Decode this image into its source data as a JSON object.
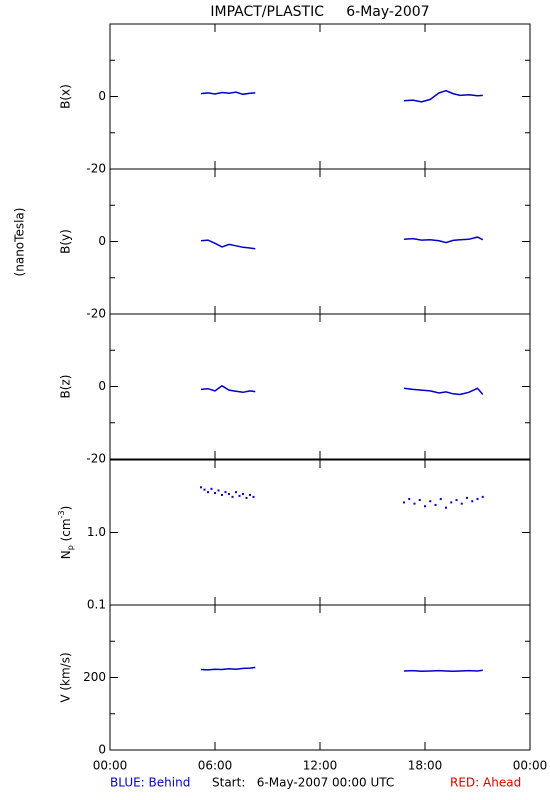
{
  "title": "IMPACT/PLASTIC     6-May-2007",
  "common_ylabel": "(nanoTesla)",
  "footer": {
    "left": "BLUE: Behind",
    "middle": "Start:   6-May-2007 00:00 UTC",
    "right": "RED: Ahead"
  },
  "chart_data": [
    {
      "type": "line",
      "ylabel": "B(x)",
      "xlim": [
        0,
        24
      ],
      "xticks": [
        0,
        6,
        12,
        18,
        24
      ],
      "ylim": [
        -20,
        20
      ],
      "yticks": [
        -20,
        0
      ],
      "yminor": [
        -10,
        10
      ],
      "series": [
        {
          "name": "Behind",
          "color": "#0000cc",
          "x": [
            5.2,
            5.6,
            6.0,
            6.4,
            6.8,
            7.2,
            7.6,
            8.0,
            8.3,
            null,
            16.8,
            17.3,
            17.8,
            18.3,
            18.8,
            19.2,
            19.6,
            20.0,
            20.5,
            21.0,
            21.3
          ],
          "values": [
            0.8,
            1.0,
            0.7,
            1.1,
            0.9,
            1.2,
            0.6,
            0.9,
            1.0,
            null,
            -1.2,
            -1.0,
            -1.5,
            -0.8,
            1.0,
            1.6,
            0.8,
            0.3,
            0.5,
            0.2,
            0.3
          ]
        }
      ]
    },
    {
      "type": "line",
      "ylabel": "B(y)",
      "xlim": [
        0,
        24
      ],
      "xticks": [
        0,
        6,
        12,
        18,
        24
      ],
      "ylim": [
        -20,
        20
      ],
      "yticks": [
        -20,
        0
      ],
      "yminor": [
        -10,
        10
      ],
      "series": [
        {
          "name": "Behind",
          "color": "#0000cc",
          "x": [
            5.2,
            5.6,
            6.0,
            6.4,
            6.8,
            7.2,
            7.6,
            8.0,
            8.3,
            null,
            16.8,
            17.3,
            17.8,
            18.3,
            18.8,
            19.2,
            19.6,
            20.0,
            20.5,
            21.0,
            21.3
          ],
          "values": [
            0.2,
            0.4,
            -0.5,
            -1.5,
            -0.8,
            -1.2,
            -1.6,
            -1.8,
            -2.0,
            null,
            0.6,
            0.8,
            0.4,
            0.5,
            0.2,
            -0.3,
            0.3,
            0.5,
            0.6,
            1.2,
            0.5
          ]
        }
      ]
    },
    {
      "type": "line",
      "ylabel": "B(z)",
      "xlim": [
        0,
        24
      ],
      "xticks": [
        0,
        6,
        12,
        18,
        24
      ],
      "ylim": [
        -20,
        20
      ],
      "yticks": [
        -20,
        0
      ],
      "yminor": [
        -10,
        10
      ],
      "series": [
        {
          "name": "Behind",
          "color": "#0000cc",
          "x": [
            5.2,
            5.6,
            6.0,
            6.4,
            6.8,
            7.2,
            7.6,
            8.0,
            8.3,
            null,
            16.8,
            17.3,
            17.8,
            18.3,
            18.8,
            19.2,
            19.6,
            20.0,
            20.5,
            21.0,
            21.3
          ],
          "values": [
            -0.8,
            -0.6,
            -1.2,
            0.2,
            -1.0,
            -1.3,
            -1.6,
            -1.2,
            -1.4,
            null,
            -0.5,
            -0.8,
            -1.0,
            -1.2,
            -1.8,
            -1.5,
            -2.0,
            -2.2,
            -1.6,
            -0.5,
            -2.2
          ]
        }
      ]
    },
    {
      "type": "scatter",
      "ylabel": {
        "base": "N",
        "sub": "p",
        "unit": " (cm",
        "sup": "-3",
        "end": ")"
      },
      "log": true,
      "xlim": [
        0,
        24
      ],
      "xticks": [
        0,
        6,
        12,
        18,
        24
      ],
      "ylim": [
        0.1,
        10
      ],
      "yticks": [
        0.1,
        {
          "value": 1,
          "label": "1.0"
        }
      ],
      "series": [
        {
          "name": "Behind",
          "color": "#0000cc",
          "x": [
            5.2,
            5.4,
            5.6,
            5.8,
            6.0,
            6.2,
            6.4,
            6.6,
            6.8,
            7.0,
            7.2,
            7.4,
            7.6,
            7.8,
            8.0,
            8.2,
            16.8,
            17.1,
            17.4,
            17.7,
            18.0,
            18.3,
            18.6,
            18.9,
            19.2,
            19.5,
            19.8,
            20.1,
            20.4,
            20.7,
            21.0,
            21.3
          ],
          "values": [
            4.2,
            3.9,
            3.6,
            4.0,
            3.5,
            3.8,
            3.3,
            3.6,
            3.4,
            3.1,
            3.6,
            3.2,
            3.4,
            3.0,
            3.3,
            3.1,
            2.6,
            2.9,
            2.5,
            2.8,
            2.3,
            2.7,
            2.4,
            2.9,
            2.2,
            2.6,
            2.8,
            2.5,
            3.0,
            2.7,
            2.9,
            3.1
          ]
        }
      ]
    },
    {
      "type": "line",
      "ylabel": "V (km/s)",
      "xlim": [
        0,
        24
      ],
      "xticks": [
        {
          "value": 0,
          "label": "00:00"
        },
        {
          "value": 6,
          "label": "06:00"
        },
        {
          "value": 12,
          "label": "12:00"
        },
        {
          "value": 18,
          "label": "18:00"
        },
        {
          "value": 24,
          "label": "00:00"
        }
      ],
      "ylim": [
        0,
        400
      ],
      "yticks": [
        0,
        200
      ],
      "yminor": [
        100,
        300
      ],
      "series": [
        {
          "name": "Behind",
          "color": "#0000cc",
          "x": [
            5.2,
            5.6,
            6.0,
            6.4,
            6.8,
            7.2,
            7.6,
            8.0,
            8.3,
            null,
            16.8,
            17.3,
            17.8,
            18.3,
            18.8,
            19.2,
            19.6,
            20.0,
            20.5,
            21.0,
            21.3
          ],
          "values": [
            222,
            221,
            223,
            222,
            224,
            223,
            225,
            226,
            228,
            null,
            218,
            219,
            217,
            218,
            219,
            218,
            217,
            218,
            219,
            218,
            220
          ]
        }
      ]
    }
  ]
}
